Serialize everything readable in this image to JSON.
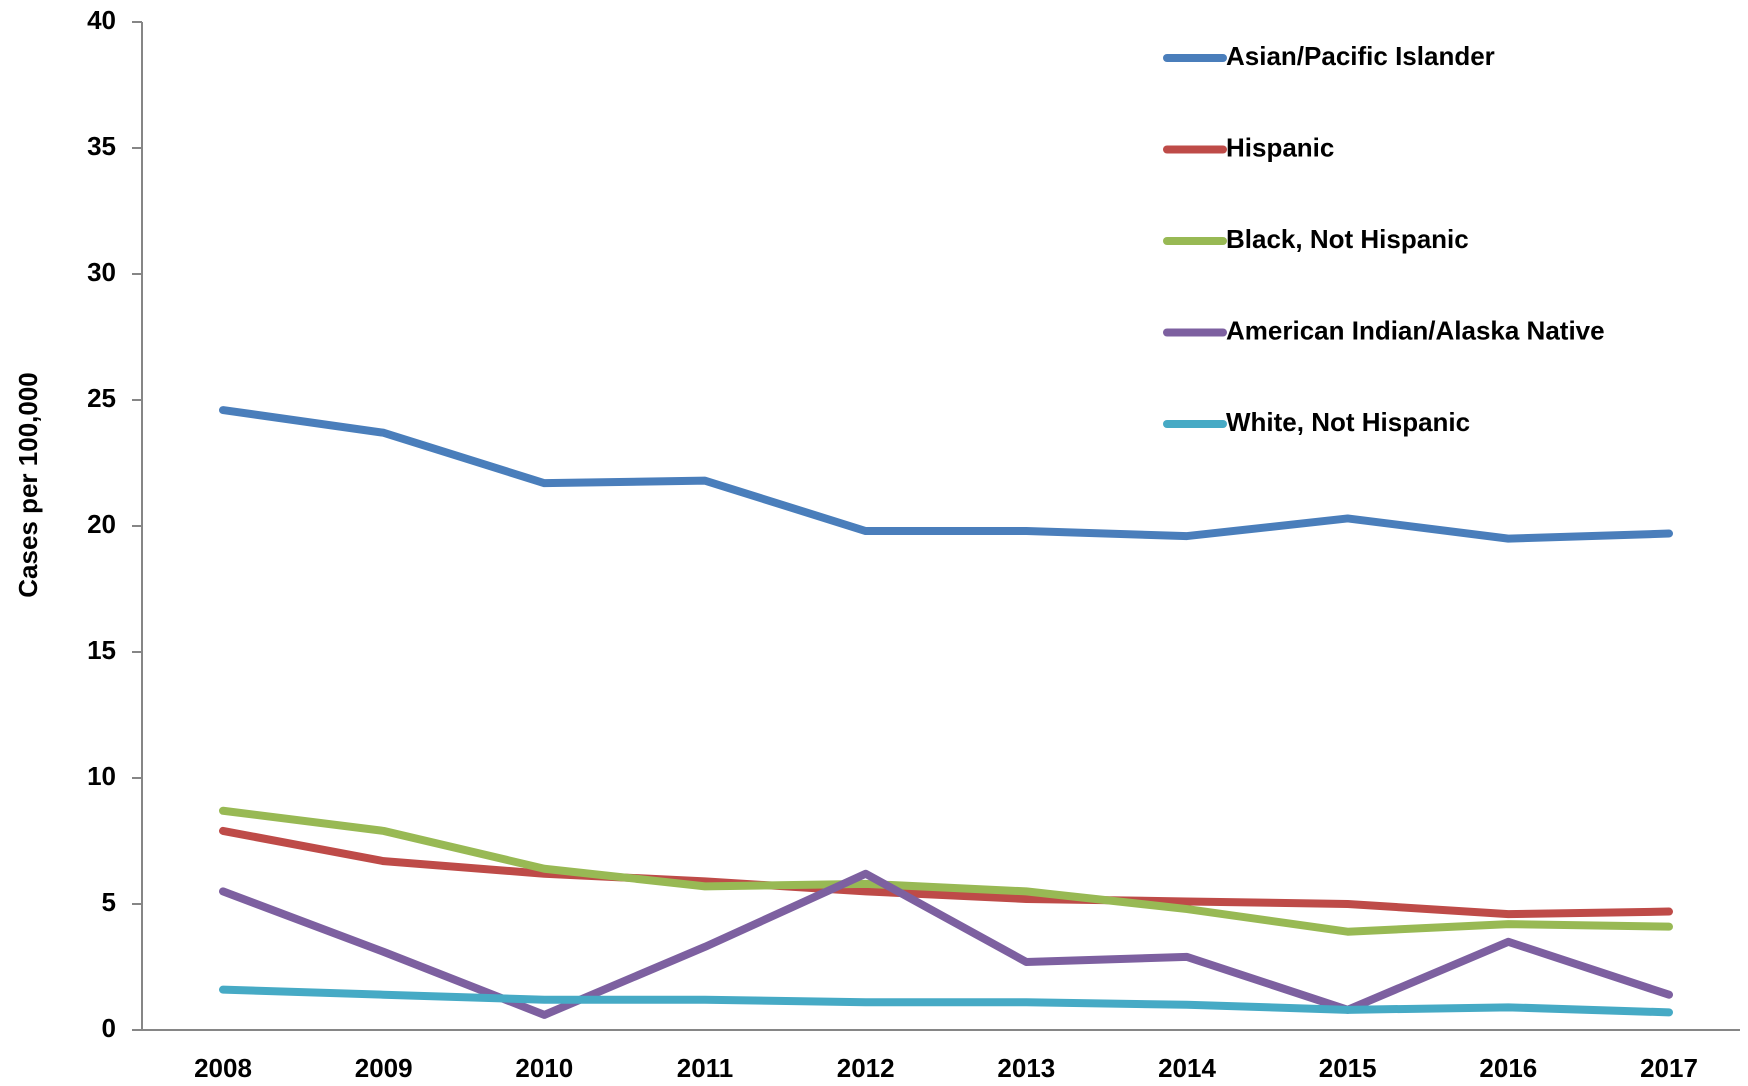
{
  "chart_data": {
    "type": "line",
    "y_label": "Cases per 100,000",
    "categories": [
      "2008",
      "2009",
      "2010",
      "2011",
      "2012",
      "2013",
      "2014",
      "2015",
      "2016",
      "2017"
    ],
    "series": [
      {
        "name": "Asian/Pacific Islander",
        "color": "#4a7ebb",
        "values": [
          24.6,
          23.7,
          21.7,
          21.8,
          19.8,
          19.8,
          19.6,
          20.3,
          19.5,
          19.7
        ]
      },
      {
        "name": "Hispanic",
        "color": "#be4b48",
        "values": [
          7.9,
          6.7,
          6.2,
          5.9,
          5.5,
          5.2,
          5.1,
          5.0,
          4.6,
          4.7
        ]
      },
      {
        "name": "Black, Not Hispanic",
        "color": "#98b954",
        "values": [
          8.7,
          7.9,
          6.4,
          5.7,
          5.8,
          5.5,
          4.8,
          3.9,
          4.2,
          4.1
        ]
      },
      {
        "name": "American Indian/Alaska Native",
        "color": "#7d60a0",
        "values": [
          5.5,
          3.1,
          0.6,
          3.3,
          6.2,
          2.7,
          2.9,
          0.8,
          3.5,
          1.4
        ]
      },
      {
        "name": "White, Not Hispanic",
        "color": "#46aac5",
        "values": [
          1.6,
          1.4,
          1.2,
          1.2,
          1.1,
          1.1,
          1.0,
          0.8,
          0.9,
          0.7
        ]
      }
    ],
    "ylim": [
      0,
      40
    ],
    "yticks": [
      0,
      5,
      10,
      15,
      20,
      25,
      30,
      35,
      40
    ],
    "grid": false,
    "legend": "upper right"
  }
}
